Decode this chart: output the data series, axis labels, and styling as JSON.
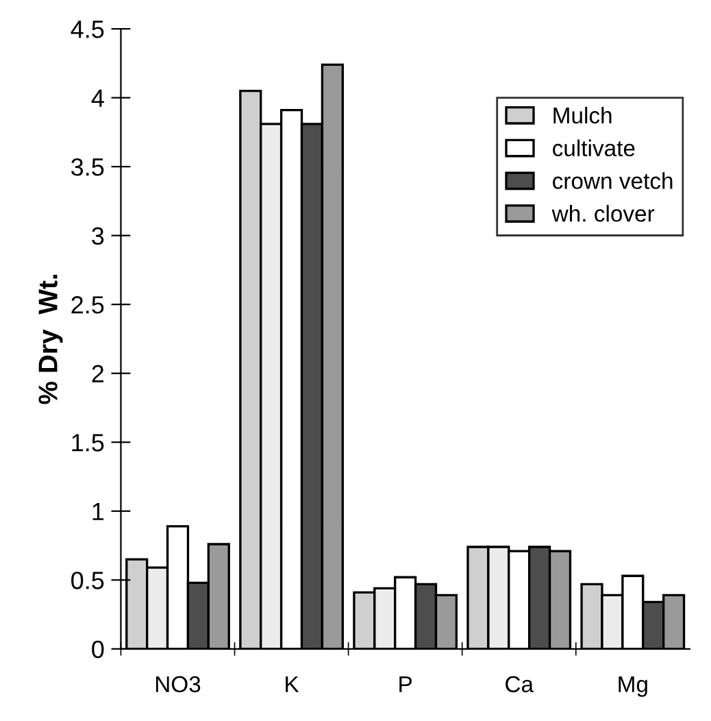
{
  "chart_data": {
    "type": "bar",
    "ylabel": "% Dry  Wt.",
    "categories": [
      "NO3",
      "K",
      "P",
      "Ca",
      "Mg"
    ],
    "series": [
      {
        "name": "Mulch",
        "color": "#cfcfcf",
        "values": [
          0.65,
          4.05,
          0.41,
          0.74,
          0.47
        ]
      },
      {
        "color": "#ececec",
        "values": [
          0.59,
          3.81,
          0.44,
          0.74,
          0.39
        ]
      },
      {
        "name": "cultivate",
        "color": "#ffffff",
        "values": [
          0.89,
          3.91,
          0.52,
          0.71,
          0.53
        ]
      },
      {
        "name": "crown vetch",
        "color": "#4d4d4d",
        "values": [
          0.48,
          3.81,
          0.47,
          0.74,
          0.34
        ]
      },
      {
        "name": "wh. clover",
        "color": "#9a9a9a",
        "values": [
          0.76,
          4.24,
          0.39,
          0.71,
          0.39
        ]
      }
    ],
    "ylim": [
      0,
      4.5
    ],
    "yticks": [
      0,
      0.5,
      1,
      1.5,
      2,
      2.5,
      3,
      3.5,
      4,
      4.5
    ],
    "grid": false,
    "legend": "top right"
  }
}
